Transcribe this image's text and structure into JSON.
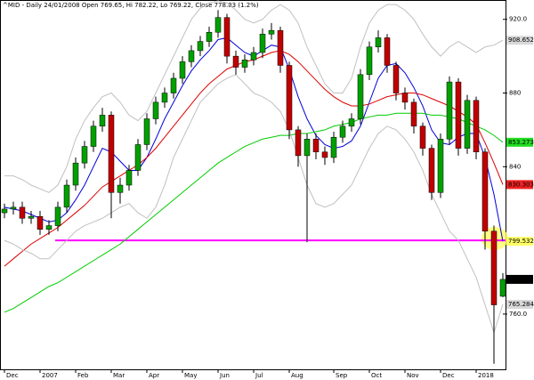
{
  "chart_data": {
    "type": "candlestick",
    "title": "^MID - Daily 24/01/2008 Open 769.65, Hi 782.22, Lo 769.22, Close 778.83 (1.2%)",
    "categories": [
      "Dec",
      null,
      null,
      null,
      "2007",
      null,
      null,
      null,
      "Feb",
      null,
      null,
      null,
      "Mar",
      null,
      null,
      null,
      "Apr",
      null,
      null,
      null,
      "May",
      null,
      null,
      null,
      "Jun",
      null,
      null,
      null,
      "Jul",
      null,
      null,
      null,
      "Aug",
      null,
      null,
      null,
      null,
      "Sep",
      null,
      null,
      null,
      "Oct",
      null,
      null,
      null,
      "Nov",
      null,
      null,
      null,
      "Dec",
      null,
      null,
      null,
      "2018",
      null,
      null,
      null
    ],
    "open": [
      815,
      817,
      818,
      812,
      813,
      806,
      808,
      818,
      830,
      842,
      851,
      862,
      868,
      826,
      830,
      838,
      852,
      866,
      875,
      880,
      888,
      897,
      903,
      908,
      913,
      921,
      900,
      894,
      898,
      902,
      912,
      914,
      895,
      860,
      846,
      855,
      848,
      845,
      856,
      862,
      866,
      890,
      905,
      910,
      895,
      880,
      875,
      862,
      850,
      826,
      855,
      886,
      850,
      876,
      848,
      805,
      769.65
    ],
    "high": [
      820,
      821,
      821,
      816,
      816,
      811,
      821,
      833,
      845,
      854,
      865,
      872,
      870,
      834,
      841,
      855,
      869,
      878,
      883,
      891,
      900,
      906,
      911,
      916,
      925,
      923,
      903,
      901,
      905,
      915,
      918,
      916,
      897,
      862,
      858,
      858,
      851,
      859,
      865,
      869,
      893,
      908,
      914,
      912,
      897,
      883,
      877,
      864,
      852,
      858,
      889,
      888,
      879,
      878,
      850,
      808,
      782.22
    ],
    "low": [
      812,
      814,
      809,
      809,
      803,
      803,
      805,
      815,
      827,
      839,
      848,
      859,
      812,
      820,
      827,
      835,
      849,
      863,
      872,
      877,
      885,
      894,
      900,
      905,
      910,
      896,
      890,
      891,
      895,
      899,
      909,
      891,
      855,
      840,
      799,
      844,
      841,
      842,
      853,
      859,
      863,
      887,
      902,
      891,
      876,
      871,
      858,
      846,
      822,
      823,
      852,
      846,
      847,
      844,
      795,
      733,
      769.22
    ],
    "close": [
      817,
      818,
      812,
      813,
      806,
      808,
      818,
      830,
      842,
      851,
      862,
      868,
      826,
      830,
      838,
      852,
      866,
      875,
      880,
      888,
      897,
      903,
      908,
      913,
      921,
      900,
      894,
      898,
      902,
      912,
      914,
      895,
      860,
      846,
      855,
      848,
      845,
      856,
      862,
      866,
      890,
      905,
      910,
      895,
      880,
      875,
      862,
      850,
      826,
      855,
      886,
      850,
      876,
      848,
      805,
      765,
      778.83
    ],
    "up_color": "#00a000",
    "down_color": "#c00000",
    "close_label_color": "#000000",
    "series": [
      {
        "color": "#0000dd",
        "label_color": "#ffff66",
        "values": [
          818,
          817,
          816,
          814,
          812,
          810,
          811,
          815,
          822,
          830,
          840,
          850,
          848,
          843,
          838,
          838,
          845,
          855,
          866,
          875,
          884,
          892,
          898,
          903,
          909,
          910,
          906,
          902,
          900,
          903,
          906,
          905,
          893,
          878,
          866,
          857,
          852,
          850,
          851,
          854,
          862,
          875,
          888,
          895,
          896,
          891,
          883,
          873,
          860,
          853,
          852,
          856,
          858,
          858,
          845,
          825,
          799.532
        ]
      },
      {
        "color": "#dd0000",
        "label_color": "#ee2222",
        "values": [
          786,
          790,
          794,
          798,
          801,
          804,
          807,
          811,
          815,
          819,
          824,
          829,
          832,
          835,
          838,
          841,
          845,
          850,
          856,
          862,
          868,
          874,
          880,
          885,
          889,
          893,
          895,
          897,
          898,
          900,
          902,
          903,
          901,
          897,
          892,
          887,
          882,
          878,
          875,
          873,
          873,
          874,
          876,
          878,
          879,
          880,
          880,
          879,
          877,
          875,
          873,
          870,
          867,
          863,
          853,
          842,
          830.303
        ]
      },
      {
        "color": "#00cc00",
        "label_color": "#22dd22",
        "values": [
          761,
          763,
          766,
          769,
          772,
          775,
          777,
          780,
          783,
          786,
          789,
          792,
          795,
          798,
          802,
          806,
          810,
          814,
          818,
          822,
          826,
          830,
          834,
          838,
          842,
          845,
          848,
          851,
          853,
          855,
          856,
          857,
          857,
          858,
          858,
          859,
          860,
          862,
          863,
          864,
          866,
          867,
          868,
          868,
          869,
          869,
          869,
          869,
          868,
          868,
          867,
          866,
          864,
          862,
          860,
          857,
          853.273
        ]
      },
      {
        "color": "#c0c0c0",
        "label_color": "#d8d8d8",
        "values": [
          835,
          835,
          833,
          830,
          828,
          826,
          830,
          840,
          855,
          865,
          872,
          878,
          880,
          875,
          868,
          865,
          870,
          880,
          890,
          900,
          910,
          920,
          926,
          929,
          930,
          929,
          925,
          920,
          918,
          920,
          925,
          928,
          925,
          918,
          905,
          895,
          885,
          880,
          880,
          888,
          905,
          918,
          925,
          928,
          928,
          925,
          920,
          912,
          905,
          900,
          905,
          908,
          905,
          902,
          905,
          906,
          908.652
        ]
      },
      {
        "color": "#c0c0c0",
        "label_color": "#d8d8d8",
        "values": [
          800,
          798,
          795,
          793,
          790,
          790,
          795,
          800,
          805,
          808,
          810,
          812,
          815,
          818,
          820,
          815,
          812,
          818,
          830,
          845,
          855,
          865,
          875,
          880,
          885,
          888,
          890,
          885,
          880,
          878,
          875,
          870,
          860,
          845,
          830,
          820,
          818,
          820,
          825,
          830,
          840,
          850,
          858,
          862,
          860,
          855,
          848,
          838,
          825,
          815,
          805,
          800,
          790,
          780,
          765,
          750,
          765.284
        ]
      }
    ],
    "reference_line": {
      "value": 800,
      "color": "#ff00ff"
    },
    "ylim": [
      730,
      930.5
    ],
    "yticks": [
      {
        "value": 920,
        "label": "920.0"
      },
      880,
      840,
      {
        "value": 760,
        "label": "760.0"
      }
    ]
  }
}
